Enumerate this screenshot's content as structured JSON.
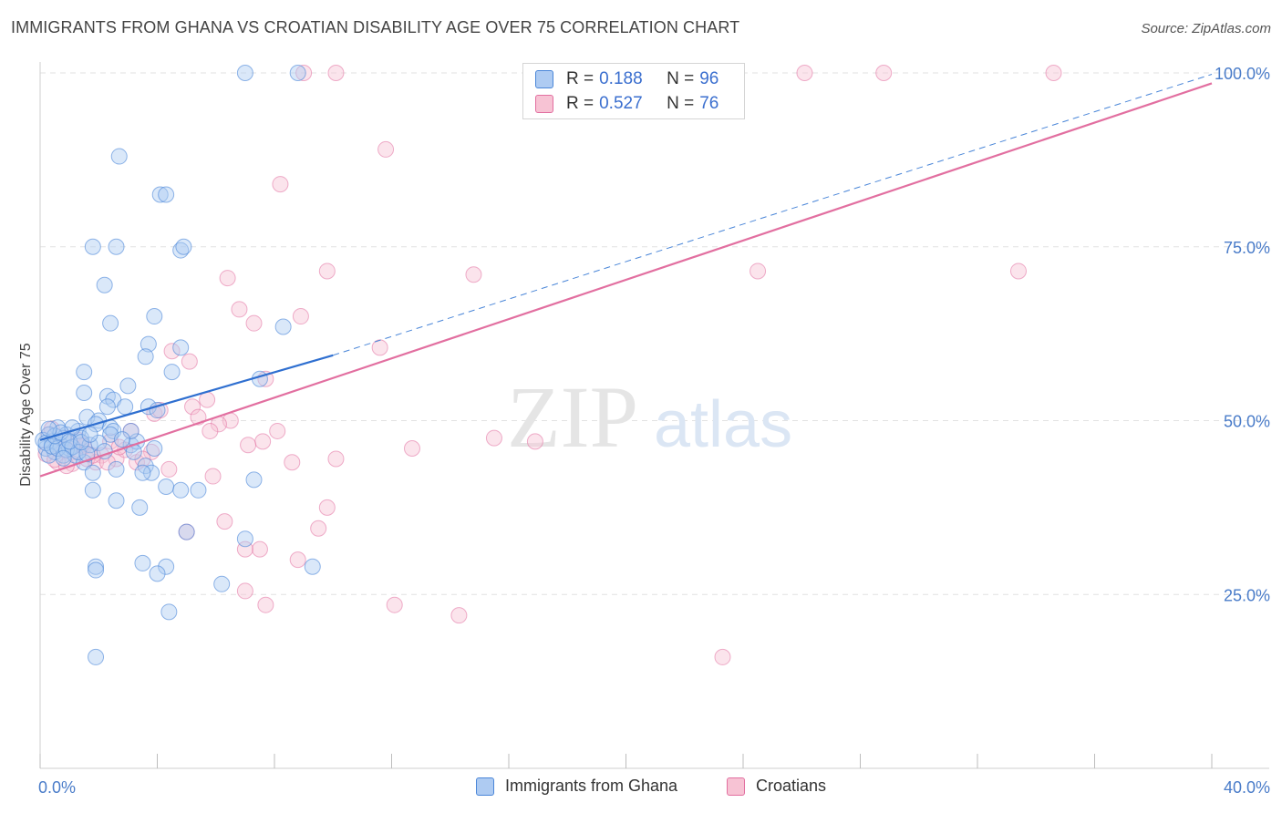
{
  "title": "IMMIGRANTS FROM GHANA VS CROATIAN DISABILITY AGE OVER 75 CORRELATION CHART",
  "source": "Source: ZipAtlas.com",
  "watermark": {
    "zip": "ZIP",
    "atlas": "atlas"
  },
  "colors": {
    "blue": "#4a86d8",
    "pink": "#e26fa0",
    "blue_fill": "#aecbf2",
    "pink_fill": "#f7c3d4",
    "axis_text": "#4a7cc9"
  },
  "legend": {
    "rows": [
      {
        "r_label": "R =",
        "r_value": "0.188",
        "n_label": "N =",
        "n_value": "96"
      },
      {
        "r_label": "R =",
        "r_value": "0.527",
        "n_label": "N =",
        "n_value": "76"
      }
    ]
  },
  "bottom_legend": {
    "blue": "Immigrants from Ghana",
    "pink": "Croatians"
  },
  "chart_data": {
    "type": "scatter",
    "title": "IMMIGRANTS FROM GHANA VS CROATIAN DISABILITY AGE OVER 75 CORRELATION CHART",
    "xlabel": "",
    "ylabel": "Disability Age Over 75",
    "xlim": [
      0,
      40
    ],
    "ylim": [
      0,
      100
    ],
    "x_tick_labels": [
      "0.0%",
      "40.0%"
    ],
    "y_tick_labels": [
      "25.0%",
      "50.0%",
      "75.0%",
      "100.0%"
    ],
    "y_ticks": [
      25,
      50,
      75,
      100
    ],
    "grid": true,
    "series": [
      {
        "name": "Immigrants from Ghana",
        "color": "#4a86d8",
        "R": 0.188,
        "N": 96,
        "trend": {
          "x": [
            0,
            10
          ],
          "y": [
            47.2,
            59.4
          ],
          "extended_to": [
            40,
            99.8
          ]
        },
        "points": [
          [
            7.0,
            100
          ],
          [
            8.8,
            100
          ],
          [
            2.7,
            88
          ],
          [
            4.1,
            82.5
          ],
          [
            4.3,
            82.5
          ],
          [
            1.8,
            75
          ],
          [
            2.6,
            75
          ],
          [
            4.8,
            74.5
          ],
          [
            4.9,
            75
          ],
          [
            2.2,
            69.5
          ],
          [
            2.4,
            64
          ],
          [
            3.9,
            65
          ],
          [
            8.3,
            63.5
          ],
          [
            4.8,
            60.5
          ],
          [
            3.7,
            61
          ],
          [
            3.6,
            59.2
          ],
          [
            1.5,
            57
          ],
          [
            4.5,
            57
          ],
          [
            7.5,
            56
          ],
          [
            3.0,
            55
          ],
          [
            1.5,
            54
          ],
          [
            2.3,
            53.5
          ],
          [
            2.5,
            53
          ],
          [
            2.3,
            52
          ],
          [
            3.7,
            52
          ],
          [
            2.9,
            52
          ],
          [
            4.0,
            51.5
          ],
          [
            1.6,
            50.5
          ],
          [
            2.0,
            50
          ],
          [
            1.9,
            49.5
          ],
          [
            2.4,
            49
          ],
          [
            2.5,
            48.5
          ],
          [
            0.6,
            49
          ],
          [
            0.3,
            48
          ],
          [
            0.9,
            48
          ],
          [
            1.3,
            48.5
          ],
          [
            1.4,
            47.5
          ],
          [
            0.4,
            47
          ],
          [
            0.7,
            46.5
          ],
          [
            0.2,
            46
          ],
          [
            0.5,
            45.5
          ],
          [
            0.8,
            45
          ],
          [
            1.2,
            45
          ],
          [
            1.7,
            46.5
          ],
          [
            3.1,
            46.5
          ],
          [
            3.3,
            47
          ],
          [
            2.4,
            48
          ],
          [
            3.1,
            48.5
          ],
          [
            1.1,
            49
          ],
          [
            0.8,
            47.5
          ],
          [
            1.0,
            46
          ],
          [
            3.9,
            46
          ],
          [
            0.3,
            45
          ],
          [
            1.5,
            44
          ],
          [
            3.2,
            45.5
          ],
          [
            3.6,
            43.5
          ],
          [
            2.6,
            43
          ],
          [
            3.8,
            42.5
          ],
          [
            1.8,
            42.5
          ],
          [
            3.5,
            42.5
          ],
          [
            7.3,
            41.5
          ],
          [
            4.3,
            40.5
          ],
          [
            5.4,
            40
          ],
          [
            4.8,
            40
          ],
          [
            1.8,
            40
          ],
          [
            2.6,
            38.5
          ],
          [
            3.4,
            37.5
          ],
          [
            5.0,
            34
          ],
          [
            7.0,
            33
          ],
          [
            9.3,
            29
          ],
          [
            1.9,
            29
          ],
          [
            3.5,
            29.5
          ],
          [
            1.9,
            28.5
          ],
          [
            4.3,
            29
          ],
          [
            4.0,
            28
          ],
          [
            6.2,
            26.5
          ],
          [
            4.4,
            22.5
          ],
          [
            1.9,
            16
          ],
          [
            0.1,
            47.2
          ],
          [
            0.2,
            46.8
          ],
          [
            0.4,
            46.3
          ],
          [
            0.6,
            46.0
          ],
          [
            0.9,
            45.8
          ],
          [
            1.1,
            46.2
          ],
          [
            1.3,
            45.5
          ],
          [
            0.5,
            47.8
          ],
          [
            0.7,
            48.3
          ],
          [
            1.0,
            47.0
          ],
          [
            1.6,
            45.2
          ],
          [
            2.0,
            46.8
          ],
          [
            2.2,
            45.6
          ],
          [
            2.8,
            47.3
          ],
          [
            0.3,
            48.8
          ],
          [
            1.4,
            46.9
          ],
          [
            0.8,
            44.6
          ],
          [
            1.7,
            48.0
          ]
        ]
      },
      {
        "name": "Croatians",
        "color": "#e26fa0",
        "R": 0.527,
        "N": 76,
        "trend": {
          "x": [
            0,
            40
          ],
          "y": [
            42.0,
            98.5
          ]
        },
        "points": [
          [
            9.0,
            100
          ],
          [
            10.1,
            100
          ],
          [
            22.5,
            100
          ],
          [
            26.1,
            100
          ],
          [
            28.8,
            100
          ],
          [
            34.6,
            100
          ],
          [
            11.8,
            89
          ],
          [
            8.2,
            84
          ],
          [
            9.8,
            71.5
          ],
          [
            14.8,
            71
          ],
          [
            24.5,
            71.5
          ],
          [
            33.4,
            71.5
          ],
          [
            6.4,
            70.5
          ],
          [
            6.8,
            66
          ],
          [
            8.9,
            65
          ],
          [
            7.3,
            64
          ],
          [
            11.6,
            60.5
          ],
          [
            4.5,
            60
          ],
          [
            5.1,
            58.5
          ],
          [
            7.7,
            56
          ],
          [
            5.7,
            53
          ],
          [
            5.2,
            52
          ],
          [
            3.9,
            51
          ],
          [
            4.1,
            51.5
          ],
          [
            6.5,
            50
          ],
          [
            5.4,
            50.5
          ],
          [
            6.1,
            49.5
          ],
          [
            8.1,
            48.5
          ],
          [
            5.8,
            48.5
          ],
          [
            15.5,
            47.5
          ],
          [
            16.9,
            47
          ],
          [
            7.6,
            47
          ],
          [
            3.1,
            48.5
          ],
          [
            2.4,
            47
          ],
          [
            1.4,
            46.5
          ],
          [
            0.9,
            47.5
          ],
          [
            0.3,
            48
          ],
          [
            1.2,
            45.5
          ],
          [
            2.1,
            45
          ],
          [
            3.8,
            45.5
          ],
          [
            2.6,
            44.5
          ],
          [
            1.9,
            44
          ],
          [
            0.6,
            44
          ],
          [
            1.6,
            44.5
          ],
          [
            3.3,
            44
          ],
          [
            4.4,
            43
          ],
          [
            12.7,
            46
          ],
          [
            10.1,
            44.5
          ],
          [
            8.6,
            44
          ],
          [
            5.9,
            42
          ],
          [
            7.1,
            46.5
          ],
          [
            9.8,
            37.5
          ],
          [
            6.3,
            35.5
          ],
          [
            9.5,
            34.5
          ],
          [
            5.0,
            34
          ],
          [
            7.5,
            31.5
          ],
          [
            7.0,
            31.5
          ],
          [
            8.8,
            30
          ],
          [
            7.0,
            25.5
          ],
          [
            7.7,
            23.5
          ],
          [
            12.1,
            23.5
          ],
          [
            14.3,
            22
          ],
          [
            23.3,
            16
          ],
          [
            0.2,
            45.2
          ],
          [
            0.5,
            44.4
          ],
          [
            0.8,
            45.9
          ],
          [
            1.1,
            43.8
          ],
          [
            1.5,
            46.3
          ],
          [
            1.8,
            45.0
          ],
          [
            2.3,
            44.0
          ],
          [
            2.9,
            45.8
          ],
          [
            3.5,
            44.5
          ],
          [
            0.4,
            48.8
          ],
          [
            0.9,
            43.5
          ],
          [
            1.3,
            47.2
          ],
          [
            2.7,
            46.2
          ]
        ]
      }
    ]
  }
}
